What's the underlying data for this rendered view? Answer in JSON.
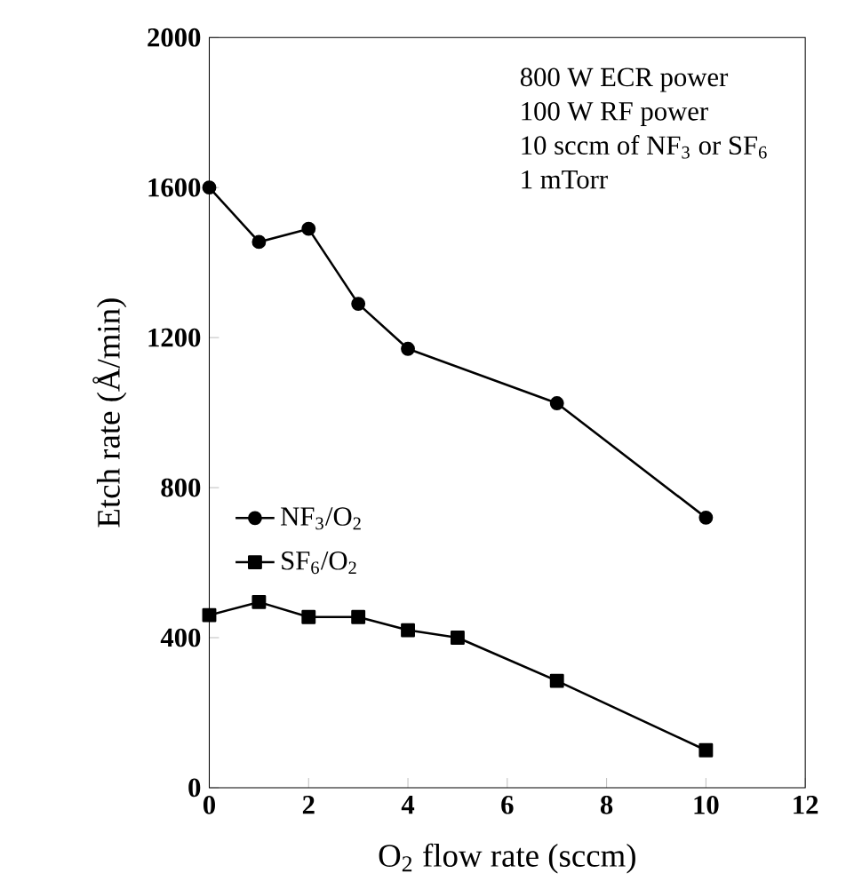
{
  "chart_data": {
    "type": "line",
    "xlabel": "O$_{2}$ flow rate (sccm)",
    "ylabel": "Etch rate (Å/min)",
    "xlim": [
      0,
      12
    ],
    "xticks": [
      0,
      2,
      4,
      6,
      8,
      10,
      12
    ],
    "ylim": [
      0,
      2000
    ],
    "yticks": [
      0,
      400,
      800,
      1200,
      1600,
      2000
    ],
    "annotations": [
      "800 W ECR power",
      "100 W RF power",
      "10 sccm of NF$_{3}$ or SF$_{6}$",
      "1 mTorr"
    ],
    "legend": "left",
    "grid": false,
    "line_style": "solid",
    "series": [
      {
        "name": "NF$_{3}$/O$_{2}$",
        "color": "#000000",
        "marker": "circle",
        "x": [
          0,
          1,
          2,
          3,
          4,
          7,
          10
        ],
        "values": [
          1600,
          1455,
          1490,
          1290,
          1170,
          1025,
          720
        ]
      },
      {
        "name": "SF$_{6}$/O$_{2}$",
        "color": "#000000",
        "marker": "square",
        "x": [
          0,
          1,
          2,
          3,
          4,
          5,
          7,
          10
        ],
        "values": [
          460,
          495,
          455,
          455,
          420,
          400,
          285,
          100
        ]
      }
    ]
  }
}
